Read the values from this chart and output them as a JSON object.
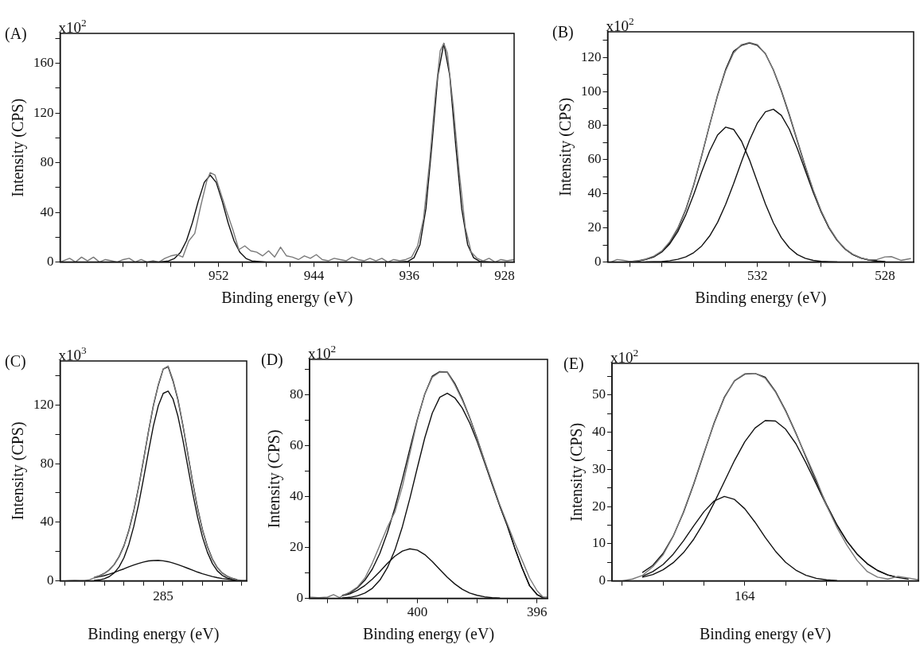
{
  "chart_data": [
    {
      "type": "line",
      "title": "(A)",
      "xlabel": "Binding energy (eV)",
      "ylabel": "Intensity (CPS)",
      "annotations": [
        "x10$^{2}$"
      ],
      "xlim": [
        965.3,
        927.2
      ],
      "ylim": [
        0,
        184
      ],
      "xticks": [
        {
          "value": 960,
          "label": null
        },
        {
          "value": 958,
          "label": null
        },
        {
          "value": 956,
          "label": null
        },
        {
          "value": 954,
          "label": null
        },
        952,
        {
          "value": 950,
          "label": null
        },
        {
          "value": 948,
          "label": null
        },
        {
          "value": 946,
          "label": null
        },
        944,
        {
          "value": 942,
          "label": null
        },
        {
          "value": 940,
          "label": null
        },
        {
          "value": 938,
          "label": null
        },
        936,
        {
          "value": 934,
          "label": null
        },
        {
          "value": 932,
          "label": null
        },
        {
          "value": 930,
          "label": null
        },
        928
      ],
      "yticks": [
        0,
        {
          "value": 20,
          "label": null
        },
        40,
        {
          "value": 60,
          "label": null
        },
        80,
        {
          "value": 100,
          "label": null
        },
        120,
        {
          "value": 140,
          "label": null
        },
        160,
        {
          "value": 180,
          "label": null
        }
      ],
      "grid": false,
      "legend": false,
      "marker": "none",
      "line_style": "solid",
      "series": [
        {
          "color": "#7a7a7a",
          "x": [
            965.3,
            964.5,
            964,
            963.5,
            963,
            962.5,
            962,
            961.5,
            961,
            960.5,
            960,
            959.5,
            959,
            958.5,
            958,
            957.5,
            957,
            956.5,
            956,
            955.5,
            955,
            954.5,
            954,
            953.5,
            953,
            952.7,
            952.3,
            951.8,
            951.3,
            950.8,
            950.3,
            949.8,
            949.3,
            948.8,
            948.3,
            947.8,
            947.3,
            946.8,
            946.3,
            945.8,
            945.3,
            944.8,
            944.3,
            943.8,
            943.3,
            942.8,
            942.3,
            941.8,
            941.3,
            940.8,
            940.3,
            939.8,
            939.3,
            938.8,
            938.3,
            937.8,
            937.3,
            936.8,
            936.3,
            935.8,
            935.3,
            934.8,
            934.3,
            933.8,
            933.4,
            933.1,
            932.8,
            932.3,
            931.8,
            931.3,
            930.8,
            930.3,
            929.8,
            929.3,
            928.8,
            928.3,
            927.8,
            927.2
          ],
          "values": [
            0,
            3,
            0,
            4,
            1,
            4,
            0,
            2,
            1,
            0,
            2,
            3,
            0,
            2,
            0,
            1,
            0,
            3,
            5,
            6,
            4,
            17,
            23,
            45,
            65,
            72,
            70,
            55,
            40,
            26,
            10,
            13,
            9,
            8,
            5,
            9,
            4,
            12,
            5,
            4,
            2,
            5,
            3,
            6,
            2,
            1,
            3,
            2,
            1,
            4,
            2,
            1,
            3,
            1,
            3,
            0,
            2,
            1,
            2,
            4,
            13,
            35,
            80,
            135,
            170,
            176,
            168,
            125,
            72,
            28,
            8,
            3,
            1,
            3,
            0,
            2,
            1,
            2
          ]
        },
        {
          "color": "#111111",
          "x": [
            965.3,
            957,
            956.2,
            955.7,
            955.2,
            954.7,
            954.2,
            953.7,
            953.2,
            952.7,
            952.2,
            951.7,
            951.2,
            950.7,
            950.2,
            949.7,
            949.2,
            948,
            937,
            936.1,
            935.6,
            935.1,
            934.6,
            934.1,
            933.6,
            933.1,
            932.6,
            932.1,
            931.6,
            931.1,
            930.6,
            930.1,
            929,
            927.2
          ],
          "values": [
            0,
            0,
            0.9,
            2.9,
            7.7,
            17,
            31.6,
            49.1,
            64.1,
            70,
            64.1,
            49.1,
            31.6,
            17,
            7.7,
            2.9,
            0.9,
            0,
            0,
            0.6,
            3.5,
            14,
            43,
            94,
            150,
            176,
            150,
            94,
            43,
            14,
            3.5,
            0.6,
            0,
            0
          ]
        }
      ]
    },
    {
      "type": "line",
      "title": "(B)",
      "xlabel": "Binding energy (eV)",
      "ylabel": "Intensity (CPS)",
      "annotations": [
        "x10$^{2}$"
      ],
      "xlim": [
        536.7,
        527.1
      ],
      "ylim": [
        0,
        135
      ],
      "xticks": [
        {
          "value": 536,
          "label": null
        },
        {
          "value": 535,
          "label": null
        },
        {
          "value": 534,
          "label": null
        },
        {
          "value": 533,
          "label": null
        },
        532,
        {
          "value": 531,
          "label": null
        },
        {
          "value": 530,
          "label": null
        },
        {
          "value": 529,
          "label": null
        },
        528
      ],
      "yticks": [
        0,
        {
          "value": 10,
          "label": null
        },
        20,
        {
          "value": 30,
          "label": null
        },
        40,
        {
          "value": 50,
          "label": null
        },
        60,
        {
          "value": 70,
          "label": null
        },
        80,
        {
          "value": 90,
          "label": null
        },
        100,
        {
          "value": 110,
          "label": null
        },
        120,
        {
          "value": 130,
          "label": null
        }
      ],
      "grid": false,
      "legend": false,
      "marker": "none",
      "line_style": "solid",
      "series": [
        {
          "color": "#7a7a7a",
          "x": [
            536.6,
            536.4,
            536.2,
            536,
            535.75,
            535.5,
            535.25,
            535,
            534.75,
            534.5,
            534.25,
            534,
            533.75,
            533.5,
            533.25,
            533,
            532.75,
            532.5,
            532.25,
            532,
            531.75,
            531.5,
            531.25,
            531,
            530.75,
            530.5,
            530.25,
            530,
            529.75,
            529.5,
            529.25,
            529,
            528.75,
            528.5,
            528.25,
            528,
            527.8,
            527.5,
            527.2
          ],
          "values": [
            0,
            1.5,
            1,
            0.3,
            0.8,
            1.8,
            3.5,
            6.5,
            12,
            20,
            31,
            45.5,
            62.5,
            80.5,
            97.5,
            112,
            122.5,
            127.5,
            128.8,
            127.5,
            122,
            112.8,
            100.8,
            86.8,
            71.5,
            56.5,
            42.2,
            30,
            20.3,
            13,
            7.8,
            4.5,
            2.5,
            1.3,
            1.5,
            3,
            3.2,
            1,
            2
          ]
        },
        {
          "color": "#111111",
          "x": [
            535.75,
            535.5,
            535.25,
            535,
            534.75,
            534.5,
            534.25,
            534,
            533.75,
            533.5,
            533.25,
            533,
            532.75,
            532.5,
            532.25,
            532,
            531.75,
            531.5,
            531.25,
            531,
            530.75,
            530.5,
            530.25,
            530,
            529.75,
            529.5,
            529.25,
            529,
            528.75,
            528.5,
            528.25
          ],
          "values": [
            0.6,
            1.6,
            3.2,
            6.2,
            11.5,
            19.4,
            30.6,
            45.1,
            62.2,
            80.4,
            97.8,
            112.8,
            123.6,
            127,
            128.4,
            127,
            122.2,
            112.6,
            100.3,
            86.2,
            71,
            55.9,
            41.8,
            29.7,
            20,
            12.8,
            7.6,
            4.3,
            2.3,
            1.2,
            0.6
          ]
        },
        {
          "color": "#111111",
          "x": [
            536,
            535.75,
            535.5,
            535.25,
            535,
            534.75,
            534.5,
            534.25,
            534,
            533.75,
            533.5,
            533.25,
            533,
            532.75,
            532.5,
            532.25,
            532,
            531.75,
            531.5,
            531.25,
            531,
            530.75,
            530.5,
            530.25,
            530,
            529.75,
            529.5
          ],
          "values": [
            0.3,
            0.6,
            1.5,
            3,
            5.9,
            10.7,
            17.8,
            27.6,
            39.6,
            52.8,
            65.1,
            74.5,
            79.1,
            77.8,
            70.9,
            59.9,
            46.9,
            34.1,
            23,
            14.3,
            8.3,
            4.4,
            2.2,
            1,
            0.4,
            0.2,
            0.1
          ]
        },
        {
          "color": "#111111",
          "x": [
            535.5,
            535.25,
            535,
            534.75,
            534.5,
            534.25,
            534,
            533.75,
            533.5,
            533.25,
            533,
            532.75,
            532.5,
            532.25,
            532,
            531.75,
            531.5,
            531.25,
            531,
            530.75,
            530.5,
            530.25,
            530,
            529.75,
            529.5,
            529.25,
            529,
            528.75,
            528.5,
            528.25,
            528
          ],
          "values": [
            0.1,
            0.2,
            0.3,
            0.8,
            1.6,
            3,
            5.5,
            9.4,
            15.3,
            23.3,
            33.7,
            45.8,
            58.9,
            71.4,
            81.6,
            88.1,
            89.6,
            86,
            77.9,
            66.6,
            53.7,
            40.8,
            29.3,
            19.8,
            12.7,
            7.6,
            4.3,
            2.3,
            1.2,
            0.6,
            0.3
          ]
        }
      ]
    },
    {
      "type": "line",
      "title": "(C)",
      "xlabel": "Binding energy (eV)",
      "ylabel": "Intensity (CPS)",
      "annotations": [
        "x10$^{3}$",
        "285"
      ],
      "ylim": [
        0,
        150
      ],
      "categories": [
        null,
        null,
        null,
        null,
        null,
        null,
        null,
        null,
        null,
        null,
        null,
        null,
        null,
        null,
        null,
        null,
        null,
        null,
        null,
        null,
        null,
        null,
        null,
        null,
        null,
        null,
        null,
        null,
        null,
        null,
        null,
        null,
        null,
        null,
        null,
        null,
        null,
        null,
        null
      ],
      "yticks": [
        0,
        {
          "value": 20,
          "label": null
        },
        40,
        {
          "value": 60,
          "label": null
        },
        80,
        {
          "value": 100,
          "label": null
        },
        120,
        {
          "value": 140,
          "label": null
        }
      ],
      "grid": false,
      "legend": false,
      "marker": "none",
      "line_style": "solid",
      "series": [
        {
          "color": "#7a7a7a",
          "values": [
            0,
            0,
            0.2,
            0.3,
            0.2,
            0.2,
            0.8,
            2.2,
            3.2,
            5,
            7.3,
            11,
            16.2,
            23.6,
            34,
            47.5,
            64,
            82.5,
            102,
            120,
            134,
            144.5,
            146.6,
            137,
            124,
            106.5,
            87,
            67.5,
            49.8,
            35,
            23.6,
            15,
            9.2,
            5.5,
            3.2,
            1.7,
            0.8,
            0.3,
            0.3
          ]
        },
        {
          "color": "#111111",
          "values": [
            null,
            null,
            null,
            null,
            null,
            null,
            null,
            2.4,
            3.5,
            5.1,
            7.5,
            11.1,
            16.5,
            24,
            34.5,
            47.9,
            64.3,
            82.8,
            101.9,
            119.6,
            133.5,
            144.5,
            146,
            136.2,
            123.4,
            106.1,
            86.7,
            67.2,
            49.4,
            34.7,
            23.4,
            14.9,
            9.1,
            5.4,
            3.2,
            1.8,
            0.9,
            null,
            null
          ]
        },
        {
          "color": "#111111",
          "values": [
            null,
            null,
            null,
            null,
            null,
            null,
            null,
            0.3,
            0.7,
            1.5,
            2.9,
            5.4,
            9.5,
            15.8,
            24.9,
            37.1,
            52.4,
            69.9,
            88.3,
            105.7,
            119.5,
            127.9,
            129.4,
            124,
            112.3,
            96.2,
            78.1,
            59.9,
            43.4,
            29.8,
            19.5,
            11.9,
            6.9,
            3.8,
            2,
            1,
            0.4,
            null,
            null
          ]
        },
        {
          "color": "#111111",
          "values": [
            null,
            null,
            null,
            null,
            null,
            null,
            null,
            2.1,
            2.8,
            3.6,
            4.6,
            5.7,
            7,
            8.2,
            9.6,
            10.8,
            11.9,
            12.9,
            13.6,
            13.9,
            14,
            13.7,
            13.1,
            12.2,
            11.1,
            9.9,
            8.6,
            7.3,
            6,
            4.9,
            3.9,
            3,
            2.2,
            1.6,
            1.2,
            0.8,
            0.5,
            null,
            null
          ]
        }
      ]
    },
    {
      "type": "line",
      "title": "(D)",
      "xlabel": "Binding energy (eV)",
      "ylabel": "Intensity (CPS)",
      "annotations": [
        "x10$^{2}$"
      ],
      "xlim": [
        403.6,
        395.65
      ],
      "ylim": [
        0,
        94
      ],
      "xticks": [
        {
          "value": 403,
          "label": null
        },
        {
          "value": 402,
          "label": null
        },
        {
          "value": 401,
          "label": null
        },
        400,
        {
          "value": 399,
          "label": null
        },
        {
          "value": 398,
          "label": null
        },
        {
          "value": 397,
          "label": null
        },
        396
      ],
      "yticks": [
        0,
        {
          "value": 10,
          "label": null
        },
        20,
        {
          "value": 30,
          "label": null
        },
        40,
        {
          "value": 50,
          "label": null
        },
        60,
        {
          "value": 70,
          "label": null
        },
        80,
        {
          "value": 90,
          "label": null
        }
      ],
      "grid": false,
      "legend": false,
      "marker": "none",
      "line_style": "solid",
      "series": [
        {
          "color": "#7a7a7a",
          "x": [
            403.6,
            403.3,
            403,
            402.8,
            402.6,
            402.5,
            402.25,
            402,
            401.75,
            401.5,
            401.25,
            401,
            400.75,
            400.5,
            400.25,
            400,
            399.75,
            399.5,
            399.25,
            399,
            398.75,
            398.5,
            398.25,
            398,
            397.75,
            397.5,
            397.25,
            397,
            396.75,
            396.5,
            396.25,
            396,
            395.8,
            395.65
          ],
          "values": [
            0.5,
            0.3,
            0.5,
            1.5,
            0.3,
            1,
            2.5,
            4.5,
            8,
            14,
            21,
            28,
            34,
            44,
            57,
            70,
            80.5,
            87,
            89,
            88.9,
            84,
            78,
            71,
            62.5,
            54,
            45.5,
            37,
            29.5,
            22,
            15,
            8,
            3,
            0.5,
            0.5
          ]
        },
        {
          "color": "#111111",
          "x": [
            402.5,
            402.25,
            402,
            401.75,
            401.5,
            401.25,
            401,
            400.75,
            400.5,
            400.25,
            400,
            399.75,
            399.5,
            399.25,
            399,
            398.75,
            398.5,
            398.25,
            398,
            397.75,
            397.5,
            397.25,
            397,
            396.75,
            396.5,
            396.25,
            396,
            395.75
          ],
          "values": [
            1.2,
            2.2,
            4.2,
            7.2,
            11.6,
            17.8,
            25.9,
            35.6,
            46.8,
            58.8,
            70.4,
            80.4,
            87.4,
            89.2,
            89,
            84.6,
            78.5,
            71.1,
            62.8,
            53.9,
            45.1,
            36.6,
            28.8,
            20,
            12,
            5,
            1.5,
            0
          ]
        },
        {
          "color": "#111111",
          "x": [
            402.5,
            402.25,
            402,
            401.75,
            401.5,
            401.25,
            401,
            400.75,
            400.5,
            400.25,
            400,
            399.75,
            399.5,
            399.25,
            399,
            398.75,
            398.5,
            398.25,
            398,
            397.75,
            397.5,
            397.25,
            397,
            396.75,
            396.5,
            396.25,
            396,
            395.75
          ],
          "values": [
            0.2,
            0.4,
            1,
            2.1,
            4,
            7.2,
            12.1,
            19,
            28.2,
            39.3,
            51.4,
            63.2,
            72.9,
            79.1,
            80.7,
            78.9,
            74.9,
            69,
            61.6,
            53.3,
            44.8,
            36.5,
            28.8,
            20,
            12,
            5,
            1.5,
            0
          ]
        },
        {
          "color": "#111111",
          "x": [
            402.5,
            402.25,
            402,
            401.75,
            401.5,
            401.25,
            401,
            400.75,
            400.5,
            400.25,
            400,
            399.75,
            399.5,
            399.25,
            399,
            398.75,
            398.5,
            398.25,
            398,
            397.75,
            397.5,
            397.25
          ],
          "values": [
            1,
            1.8,
            3.2,
            5.1,
            7.6,
            10.6,
            13.8,
            16.6,
            18.6,
            19.5,
            19,
            17.2,
            14.5,
            11.4,
            8.3,
            5.7,
            3.6,
            2.1,
            1.2,
            0.6,
            0.3,
            0.1
          ]
        }
      ]
    },
    {
      "type": "line",
      "title": "(E)",
      "xlabel": "Binding energy (eV)",
      "ylabel": "Intensity (CPS)",
      "annotations": [
        "x10$^{2}$",
        "164"
      ],
      "ylim": [
        0,
        58.5
      ],
      "categories": [
        null,
        null,
        null,
        null,
        null,
        null,
        null,
        null,
        null,
        null,
        null,
        null,
        null,
        null,
        null,
        null,
        null,
        null,
        null,
        null,
        null,
        null,
        null,
        null,
        null,
        null,
        null,
        null,
        null,
        null,
        null
      ],
      "yticks": [
        0,
        {
          "value": 5,
          "label": null
        },
        10,
        {
          "value": 15,
          "label": null
        },
        20,
        {
          "value": 25,
          "label": null
        },
        30,
        {
          "value": 35,
          "label": null
        },
        40,
        {
          "value": 45,
          "label": null
        },
        50,
        {
          "value": 55,
          "label": null
        }
      ],
      "grid": false,
      "legend": false,
      "marker": "none",
      "line_style": "solid",
      "series": [
        {
          "color": "#7a7a7a",
          "values": [
            0,
            0,
            0.5,
            1.5,
            3.8,
            7,
            12,
            18.6,
            26.2,
            34.5,
            42.3,
            49.2,
            53.9,
            55.7,
            55.8,
            54.5,
            50.8,
            45.6,
            39.6,
            33.5,
            27.3,
            20.3,
            14.5,
            9.6,
            5.5,
            2.5,
            1,
            0.5,
            1.2,
            0.8,
            0.3
          ]
        },
        {
          "color": "#111111",
          "values": [
            null,
            null,
            null,
            2.3,
            4.2,
            7.4,
            12.1,
            18.4,
            26,
            34.3,
            42.5,
            49.4,
            53.8,
            55.6,
            55.8,
            54.8,
            51,
            45.8,
            39.8,
            33.2,
            26.7,
            20.6,
            15.2,
            10.7,
            7.2,
            4.6,
            2.8,
            1.6,
            0.9,
            null,
            null
          ]
        },
        {
          "color": "#111111",
          "values": [
            null,
            null,
            null,
            1,
            1.7,
            3,
            4.9,
            7.6,
            11.2,
            15.7,
            21,
            26.7,
            32.4,
            37.4,
            41.1,
            43.1,
            43,
            40.8,
            36.9,
            31.7,
            26,
            20.3,
            15.1,
            10.7,
            7.2,
            4.6,
            2.8,
            1.6,
            0.9,
            0.5,
            null
          ]
        },
        {
          "color": "#111111",
          "values": [
            null,
            null,
            null,
            1.3,
            2.5,
            4.4,
            7.2,
            10.8,
            14.8,
            18.6,
            21.5,
            22.7,
            21.9,
            19.4,
            15.8,
            11.7,
            8,
            5,
            2.9,
            1.5,
            0.7,
            0.3,
            0.1,
            null,
            null,
            null,
            null,
            null,
            null,
            null,
            null
          ]
        }
      ]
    }
  ]
}
